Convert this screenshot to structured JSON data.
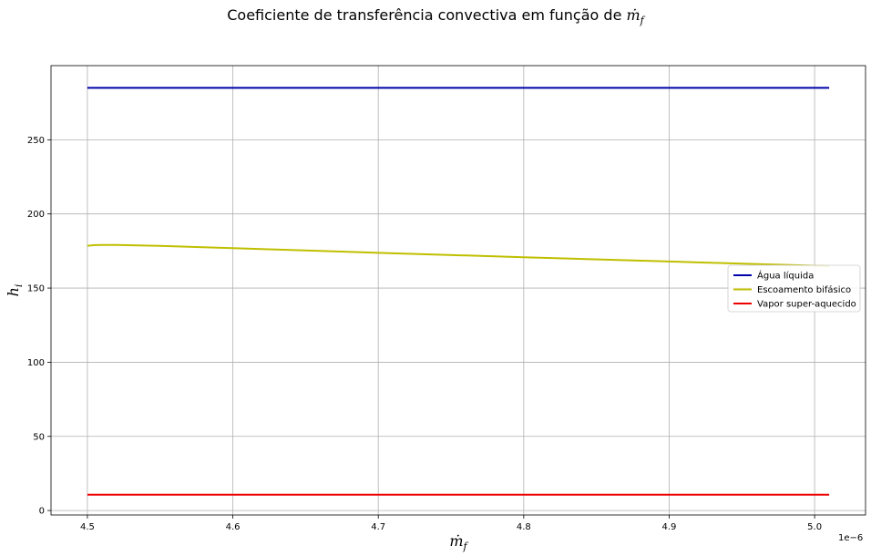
{
  "chart_data": {
    "type": "line",
    "title": "Coeficiente de transferência convectiva em função de ṁ_f",
    "xlabel": "ṁ_f",
    "ylabel": "h_i",
    "x_offset_label": "1e−6",
    "x_scale": 1e-06,
    "xlim": [
      4.475,
      5.035
    ],
    "ylim": [
      -3,
      300
    ],
    "xticks": [
      4.5,
      4.6,
      4.7,
      4.8,
      4.9,
      5.0
    ],
    "xtick_labels": [
      "4.5",
      "4.6",
      "4.7",
      "4.8",
      "4.9",
      "5.0"
    ],
    "yticks": [
      0,
      50,
      100,
      150,
      200,
      250
    ],
    "ytick_labels": [
      "0",
      "50",
      "100",
      "150",
      "200",
      "250"
    ],
    "grid": true,
    "legend_position": "center-right",
    "series": [
      {
        "name": "Água líquida",
        "color": "#0000aa",
        "x": [
          4.5,
          5.01
        ],
        "y": [
          285,
          285
        ]
      },
      {
        "name": "Escoamento bifásico",
        "color": "#bfbf00",
        "x": [
          4.5,
          4.505,
          4.51,
          4.52,
          4.55,
          4.6,
          4.7,
          4.8,
          4.9,
          5.0,
          5.01
        ],
        "y": [
          178.5,
          179,
          179.1,
          179.1,
          178.5,
          176.9,
          173.8,
          170.8,
          167.9,
          165.1,
          164.8
        ]
      },
      {
        "name": "Vapor super-aquecido",
        "color": "#ee0000",
        "x": [
          4.5,
          5.01
        ],
        "y": [
          10.7,
          10.7
        ]
      }
    ]
  }
}
